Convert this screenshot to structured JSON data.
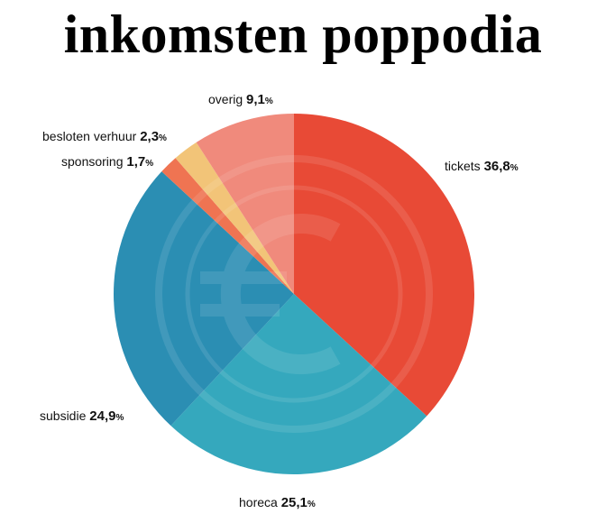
{
  "title": "inkomsten poppodia",
  "chart_data": {
    "type": "pie",
    "title": "inkomsten poppodia",
    "unit": "%",
    "slices": [
      {
        "label": "tickets",
        "value": 36.8,
        "display": "36,8",
        "color": "#e84a36"
      },
      {
        "label": "horeca",
        "value": 25.1,
        "display": "25,1",
        "color": "#35a8bd"
      },
      {
        "label": "subsidie",
        "value": 24.9,
        "display": "24,9",
        "color": "#2b8eb3"
      },
      {
        "label": "sponsoring",
        "value": 1.7,
        "display": "1,7",
        "color": "#ef7452"
      },
      {
        "label": "besloten verhuur",
        "value": 2.3,
        "display": "2,3",
        "color": "#f2c478"
      },
      {
        "label": "overig",
        "value": 9.1,
        "display": "9,1",
        "color": "#f08a7c"
      }
    ],
    "watermark_icon": "euro-icon"
  }
}
